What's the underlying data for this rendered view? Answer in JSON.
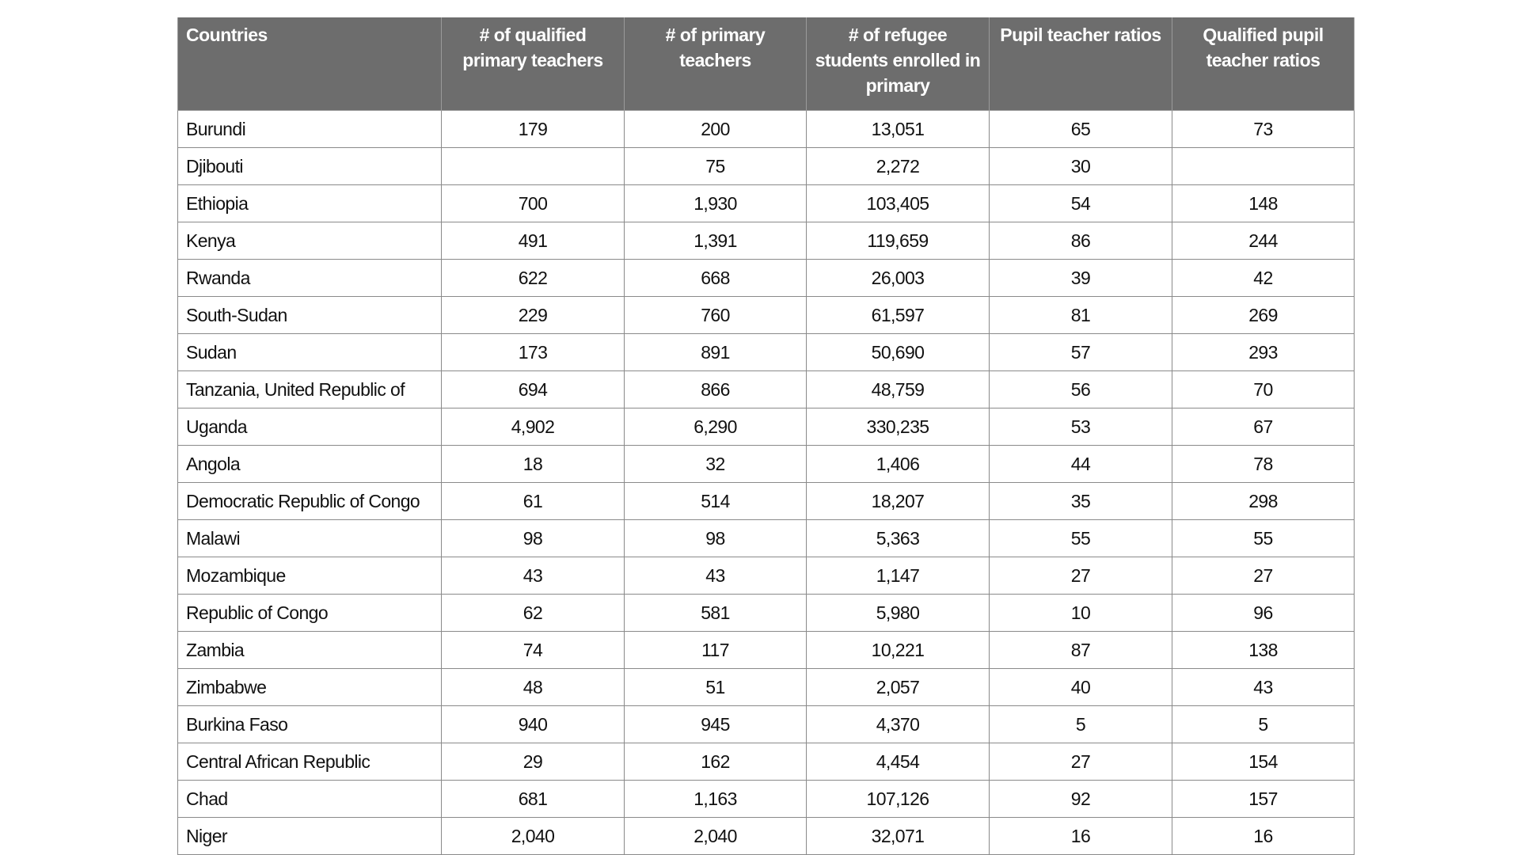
{
  "table": {
    "headers": [
      "Countries",
      "# of qualified primary teachers",
      "# of primary teachers",
      "# of refugee students enrolled in primary",
      "Pupil teacher ratios",
      "Qualified pupil teacher ratios"
    ],
    "rows": [
      [
        "Burundi",
        "179",
        "200",
        "13,051",
        "65",
        "73"
      ],
      [
        "Djibouti",
        null,
        "75",
        "2,272",
        "30",
        null
      ],
      [
        "Ethiopia",
        "700",
        "1,930",
        "103,405",
        "54",
        "148"
      ],
      [
        "Kenya",
        "491",
        "1,391",
        "119,659",
        "86",
        "244"
      ],
      [
        "Rwanda",
        "622",
        "668",
        "26,003",
        "39",
        "42"
      ],
      [
        "South-Sudan",
        "229",
        "760",
        "61,597",
        "81",
        "269"
      ],
      [
        "Sudan",
        "173",
        "891",
        "50,690",
        "57",
        "293"
      ],
      [
        "Tanzania, United Republic of",
        "694",
        "866",
        "48,759",
        "56",
        "70"
      ],
      [
        "Uganda",
        "4,902",
        "6,290",
        "330,235",
        "53",
        "67"
      ],
      [
        "Angola",
        "18",
        "32",
        "1,406",
        "44",
        "78"
      ],
      [
        "Democratic Republic of Congo",
        "61",
        "514",
        "18,207",
        "35",
        "298"
      ],
      [
        "Malawi",
        "98",
        "98",
        "5,363",
        "55",
        "55"
      ],
      [
        "Mozambique",
        "43",
        "43",
        "1,147",
        "27",
        "27"
      ],
      [
        "Republic of Congo",
        "62",
        "581",
        "5,980",
        "10",
        "96"
      ],
      [
        "Zambia",
        "74",
        "117",
        "10,221",
        "87",
        "138"
      ],
      [
        "Zimbabwe",
        "48",
        "51",
        "2,057",
        "40",
        "43"
      ],
      [
        "Burkina Faso",
        "940",
        "945",
        "4,370",
        "5",
        "5"
      ],
      [
        "Central African Republic",
        "29",
        "162",
        "4,454",
        "27",
        "154"
      ],
      [
        "Chad",
        "681",
        "1,163",
        "107,126",
        "92",
        "157"
      ],
      [
        "Niger",
        "2,040",
        "2,040",
        "32,071",
        "16",
        "16"
      ]
    ]
  }
}
